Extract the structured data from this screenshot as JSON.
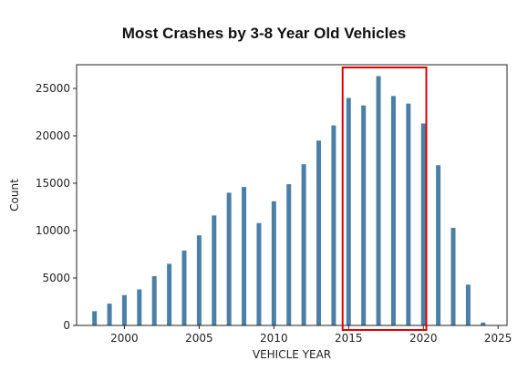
{
  "chart_data": {
    "type": "bar",
    "title": "Most Crashes by 3-8 Year Old Vehicles",
    "xlabel": "VEHICLE YEAR",
    "ylabel": "Count",
    "x": [
      1998,
      1999,
      2000,
      2001,
      2002,
      2003,
      2004,
      2005,
      2006,
      2007,
      2008,
      2009,
      2010,
      2011,
      2012,
      2013,
      2014,
      2015,
      2016,
      2017,
      2018,
      2019,
      2020,
      2021,
      2022,
      2023,
      2024
    ],
    "values": [
      1500,
      2300,
      3200,
      3800,
      5200,
      6500,
      7900,
      9500,
      11600,
      14000,
      14600,
      10800,
      13100,
      14900,
      17000,
      19500,
      21100,
      24000,
      23200,
      26300,
      24200,
      23400,
      21300,
      16900,
      10300,
      4300,
      300
    ],
    "xlim": [
      1996.8,
      2025.6
    ],
    "ylim": [
      0,
      27500
    ],
    "xticks": [
      2000,
      2005,
      2010,
      2015,
      2020,
      2025
    ],
    "yticks": [
      0,
      5000,
      10000,
      15000,
      20000,
      25000
    ],
    "bar_color": "#4c7fa6",
    "grid": false,
    "highlight": {
      "x_range": [
        2014.6,
        2020.2
      ],
      "color": "#e00000"
    }
  }
}
